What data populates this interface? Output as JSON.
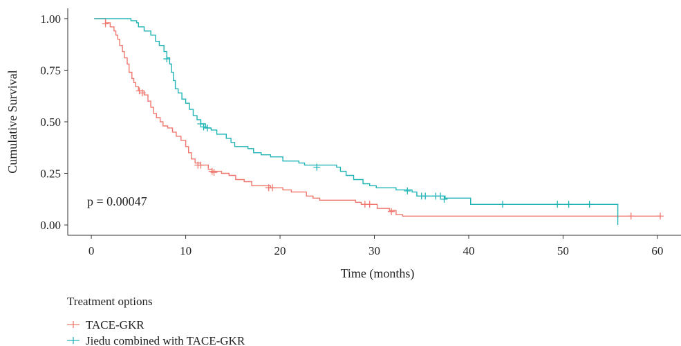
{
  "chart_data": {
    "type": "line",
    "subtype": "kaplan-meier",
    "title": "",
    "xlabel": "Time (months)",
    "ylabel": "Cumulative Survival",
    "xlim": [
      -2.5,
      62.5
    ],
    "ylim": [
      -0.05,
      1.05
    ],
    "x_ticks": [
      0,
      10,
      20,
      30,
      40,
      50,
      60
    ],
    "x_tick_labels": [
      "0",
      "10",
      "20",
      "30",
      "40",
      "50",
      "60"
    ],
    "y_ticks": [
      0.0,
      0.25,
      0.5,
      0.75,
      1.0
    ],
    "y_tick_labels": [
      "0.00",
      "0.25",
      "0.50",
      "0.75",
      "1.00"
    ],
    "grid": false,
    "annotation": "p = 0.00047",
    "legend": {
      "title": "Treatment options",
      "position": "bottom"
    },
    "series": [
      {
        "name": "TACE-GKR",
        "color": "#f0776e",
        "steps": [
          [
            0.3,
            1.0
          ],
          [
            1.5,
            0.98
          ],
          [
            2.0,
            0.96
          ],
          [
            2.4,
            0.94
          ],
          [
            2.6,
            0.92
          ],
          [
            2.8,
            0.9
          ],
          [
            3.0,
            0.87
          ],
          [
            3.3,
            0.84
          ],
          [
            3.5,
            0.81
          ],
          [
            3.8,
            0.78
          ],
          [
            4.0,
            0.74
          ],
          [
            4.3,
            0.71
          ],
          [
            4.5,
            0.69
          ],
          [
            4.7,
            0.67
          ],
          [
            5.0,
            0.65
          ],
          [
            5.6,
            0.63
          ],
          [
            6.0,
            0.6
          ],
          [
            6.3,
            0.57
          ],
          [
            6.6,
            0.54
          ],
          [
            6.9,
            0.52
          ],
          [
            7.3,
            0.5
          ],
          [
            7.6,
            0.48
          ],
          [
            8.1,
            0.47
          ],
          [
            8.6,
            0.45
          ],
          [
            9.0,
            0.43
          ],
          [
            9.5,
            0.41
          ],
          [
            10.0,
            0.38
          ],
          [
            10.3,
            0.35
          ],
          [
            10.6,
            0.32
          ],
          [
            11.0,
            0.3
          ],
          [
            11.6,
            0.29
          ],
          [
            12.4,
            0.27
          ],
          [
            12.8,
            0.26
          ],
          [
            13.8,
            0.25
          ],
          [
            14.6,
            0.24
          ],
          [
            15.3,
            0.22
          ],
          [
            16.2,
            0.21
          ],
          [
            17.0,
            0.19
          ],
          [
            19.0,
            0.18
          ],
          [
            20.3,
            0.17
          ],
          [
            21.2,
            0.16
          ],
          [
            22.8,
            0.14
          ],
          [
            23.5,
            0.13
          ],
          [
            24.2,
            0.12
          ],
          [
            28.0,
            0.11
          ],
          [
            28.6,
            0.1
          ],
          [
            30.3,
            0.08
          ],
          [
            31.6,
            0.07
          ],
          [
            32.3,
            0.05
          ],
          [
            33.0,
            0.043
          ],
          [
            60.3,
            0.043
          ]
        ],
        "censors": [
          [
            1.5,
            0.975
          ],
          [
            5.1,
            0.65
          ],
          [
            5.4,
            0.64
          ],
          [
            11.3,
            0.29
          ],
          [
            11.6,
            0.29
          ],
          [
            12.8,
            0.26
          ],
          [
            13.0,
            0.255
          ],
          [
            18.8,
            0.18
          ],
          [
            19.2,
            0.18
          ],
          [
            29.0,
            0.1
          ],
          [
            29.5,
            0.1
          ],
          [
            31.8,
            0.065
          ],
          [
            57.2,
            0.043
          ],
          [
            60.3,
            0.043
          ]
        ]
      },
      {
        "name": "Jiedu combined with TACE-GKR",
        "color": "#1fb3b5",
        "steps": [
          [
            0.3,
            1.0
          ],
          [
            4.2,
            0.99
          ],
          [
            4.8,
            0.98
          ],
          [
            5.0,
            0.96
          ],
          [
            5.6,
            0.94
          ],
          [
            6.3,
            0.92
          ],
          [
            6.8,
            0.89
          ],
          [
            7.2,
            0.87
          ],
          [
            7.7,
            0.84
          ],
          [
            8.0,
            0.81
          ],
          [
            8.3,
            0.78
          ],
          [
            8.5,
            0.74
          ],
          [
            8.7,
            0.7
          ],
          [
            8.9,
            0.66
          ],
          [
            9.2,
            0.64
          ],
          [
            9.6,
            0.61
          ],
          [
            10.0,
            0.59
          ],
          [
            10.4,
            0.56
          ],
          [
            10.8,
            0.53
          ],
          [
            11.2,
            0.51
          ],
          [
            11.6,
            0.49
          ],
          [
            12.1,
            0.47
          ],
          [
            12.7,
            0.46
          ],
          [
            13.3,
            0.44
          ],
          [
            14.3,
            0.42
          ],
          [
            14.8,
            0.4
          ],
          [
            15.2,
            0.38
          ],
          [
            16.6,
            0.37
          ],
          [
            17.2,
            0.35
          ],
          [
            18.0,
            0.34
          ],
          [
            19.0,
            0.33
          ],
          [
            20.3,
            0.31
          ],
          [
            22.0,
            0.3
          ],
          [
            22.6,
            0.29
          ],
          [
            26.0,
            0.28
          ],
          [
            26.4,
            0.26
          ],
          [
            27.0,
            0.24
          ],
          [
            27.8,
            0.22
          ],
          [
            28.8,
            0.2
          ],
          [
            29.5,
            0.19
          ],
          [
            30.2,
            0.18
          ],
          [
            32.3,
            0.17
          ],
          [
            34.0,
            0.16
          ],
          [
            34.5,
            0.14
          ],
          [
            37.5,
            0.13
          ],
          [
            40.2,
            0.1
          ],
          [
            55.8,
            0.1
          ],
          [
            55.8,
            0.0
          ]
        ],
        "censors": [
          [
            8.0,
            0.805
          ],
          [
            11.6,
            0.49
          ],
          [
            11.9,
            0.475
          ],
          [
            12.3,
            0.47
          ],
          [
            23.9,
            0.28
          ],
          [
            33.5,
            0.165
          ],
          [
            35.0,
            0.14
          ],
          [
            35.4,
            0.14
          ],
          [
            36.5,
            0.14
          ],
          [
            37.0,
            0.14
          ],
          [
            37.4,
            0.125
          ],
          [
            43.6,
            0.1
          ],
          [
            49.4,
            0.1
          ],
          [
            50.6,
            0.1
          ],
          [
            52.8,
            0.1
          ]
        ]
      }
    ]
  }
}
